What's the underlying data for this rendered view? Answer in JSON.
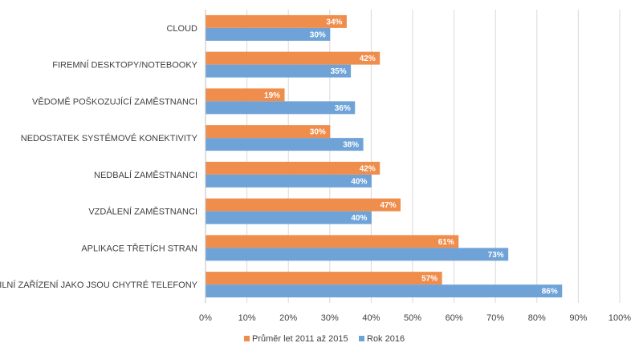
{
  "colors": {
    "series1": "#ef8d4c",
    "series2": "#6fa3d8",
    "grid": "#d9d9d9",
    "axis": "#bfbfbf",
    "text": "#404040",
    "data_label": "#ffffff"
  },
  "chart_data": {
    "type": "bar",
    "orientation": "horizontal",
    "categories": [
      "CLOUD",
      "FIREMNÍ DESKTOPY/NOTEBOOKY",
      "VĚDOMĚ POŠKOZUJÍCÍ ZAMĚSTNANCI",
      "NEDOSTATEK SYSTÉMOVÉ KONEKTIVITY",
      "NEDBALÍ ZAMĚSTNANCI",
      "VZDÁLENÍ ZAMĚSTNANCI",
      "APLIKACE TŘETÍCH STRAN",
      "MOBILNÍ ZAŘÍZENÍ JAKO JSOU CHYTRÉ TELEFONY"
    ],
    "series": [
      {
        "name": "Průměr let 2011 až 2015",
        "values": [
          34,
          42,
          19,
          30,
          42,
          47,
          61,
          57
        ],
        "labels": [
          "34%",
          "42%",
          "19%",
          "30%",
          "42%",
          "47%",
          "61%",
          "57%"
        ]
      },
      {
        "name": "Rok 2016",
        "values": [
          30,
          35,
          36,
          38,
          40,
          40,
          73,
          86
        ],
        "labels": [
          "30%",
          "35%",
          "36%",
          "38%",
          "40%",
          "40%",
          "73%",
          "86%"
        ]
      }
    ],
    "xlim": [
      0,
      100
    ],
    "x_ticks": [
      0,
      10,
      20,
      30,
      40,
      50,
      60,
      70,
      80,
      90,
      100
    ],
    "x_tick_labels": [
      "0%",
      "10%",
      "20%",
      "30%",
      "40%",
      "50%",
      "60%",
      "70%",
      "80%",
      "90%",
      "100%"
    ],
    "grid": true,
    "legend_position": "bottom",
    "title": "",
    "xlabel": "",
    "ylabel": ""
  }
}
